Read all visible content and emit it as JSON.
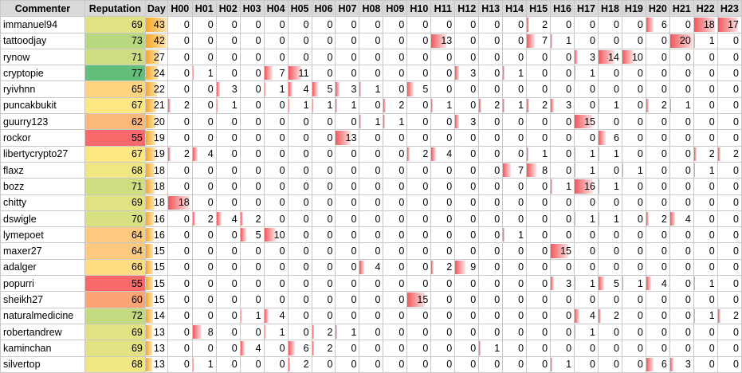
{
  "headers": [
    "Commenter",
    "Reputation",
    "Day",
    "H00",
    "H01",
    "H02",
    "H03",
    "H04",
    "H05",
    "H06",
    "H07",
    "H08",
    "H09",
    "H10",
    "H11",
    "H12",
    "H13",
    "H14",
    "H15",
    "H16",
    "H17",
    "H18",
    "H19",
    "H20",
    "H21",
    "H22",
    "H23"
  ],
  "rows": [
    {
      "name": "immanuel94",
      "rep": "69",
      "rep_color": "#e2e283",
      "day": "43",
      "hours": [
        "0",
        "0",
        "0",
        "0",
        "0",
        "0",
        "0",
        "0",
        "0",
        "0",
        "0",
        "0",
        "0",
        "0",
        "0",
        "2",
        "0",
        "0",
        "0",
        "0",
        "6",
        "0",
        "18",
        "17"
      ]
    },
    {
      "name": "tattoodjay",
      "rep": "73",
      "rep_color": "#b7d880",
      "day": "42",
      "hours": [
        "0",
        "0",
        "0",
        "0",
        "0",
        "0",
        "0",
        "0",
        "0",
        "0",
        "0",
        "13",
        "0",
        "0",
        "0",
        "7",
        "1",
        "0",
        "0",
        "0",
        "0",
        "20",
        "1",
        "0"
      ]
    },
    {
      "name": "rynow",
      "rep": "71",
      "rep_color": "#cedd82",
      "day": "27",
      "hours": [
        "0",
        "0",
        "0",
        "0",
        "0",
        "0",
        "0",
        "0",
        "0",
        "0",
        "0",
        "0",
        "0",
        "0",
        "0",
        "0",
        "0",
        "3",
        "14",
        "10",
        "0",
        "0",
        "0",
        "0"
      ]
    },
    {
      "name": "cryptopie",
      "rep": "77",
      "rep_color": "#63be7b",
      "day": "24",
      "hours": [
        "0",
        "1",
        "0",
        "0",
        "7",
        "11",
        "0",
        "0",
        "0",
        "0",
        "0",
        "0",
        "3",
        "0",
        "1",
        "0",
        "0",
        "1",
        "0",
        "0",
        "0",
        "0",
        "0",
        "0"
      ]
    },
    {
      "name": "ryivhnn",
      "rep": "65",
      "rep_color": "#fed481",
      "day": "22",
      "hours": [
        "0",
        "0",
        "3",
        "0",
        "1",
        "4",
        "5",
        "3",
        "1",
        "0",
        "5",
        "0",
        "0",
        "0",
        "0",
        "0",
        "0",
        "0",
        "0",
        "0",
        "0",
        "0",
        "0",
        "0"
      ]
    },
    {
      "name": "puncakbukit",
      "rep": "67",
      "rep_color": "#fde783",
      "day": "21",
      "hours": [
        "2",
        "0",
        "1",
        "0",
        "0",
        "1",
        "1",
        "1",
        "0",
        "2",
        "0",
        "1",
        "0",
        "2",
        "1",
        "2",
        "3",
        "0",
        "1",
        "0",
        "2",
        "1",
        "0",
        "0"
      ]
    },
    {
      "name": "guurry123",
      "rep": "62",
      "rep_color": "#fcb77a",
      "day": "20",
      "hours": [
        "0",
        "0",
        "0",
        "0",
        "0",
        "0",
        "0",
        "0",
        "1",
        "1",
        "0",
        "0",
        "3",
        "0",
        "0",
        "0",
        "0",
        "15",
        "0",
        "0",
        "0",
        "0",
        "0",
        "0"
      ]
    },
    {
      "name": "rockor",
      "rep": "55",
      "rep_color": "#f8696b",
      "day": "19",
      "hours": [
        "0",
        "0",
        "0",
        "0",
        "0",
        "0",
        "0",
        "13",
        "0",
        "0",
        "0",
        "0",
        "0",
        "0",
        "0",
        "0",
        "0",
        "0",
        "6",
        "0",
        "0",
        "0",
        "0",
        "0"
      ]
    },
    {
      "name": "libertycrypto27",
      "rep": "67",
      "rep_color": "#fde783",
      "day": "19",
      "hours": [
        "2",
        "4",
        "0",
        "0",
        "0",
        "0",
        "0",
        "0",
        "0",
        "0",
        "2",
        "4",
        "0",
        "0",
        "0",
        "1",
        "0",
        "1",
        "1",
        "0",
        "0",
        "0",
        "2",
        "2"
      ]
    },
    {
      "name": "flaxz",
      "rep": "68",
      "rep_color": "#f0e683",
      "day": "18",
      "hours": [
        "0",
        "0",
        "0",
        "0",
        "0",
        "0",
        "0",
        "0",
        "0",
        "0",
        "0",
        "0",
        "0",
        "0",
        "7",
        "8",
        "0",
        "1",
        "0",
        "1",
        "0",
        "0",
        "1",
        "0"
      ]
    },
    {
      "name": "bozz",
      "rep": "71",
      "rep_color": "#cedd82",
      "day": "18",
      "hours": [
        "0",
        "0",
        "0",
        "0",
        "0",
        "0",
        "0",
        "0",
        "0",
        "0",
        "0",
        "0",
        "0",
        "0",
        "0",
        "0",
        "1",
        "16",
        "1",
        "0",
        "0",
        "0",
        "0",
        "0"
      ]
    },
    {
      "name": "chitty",
      "rep": "69",
      "rep_color": "#e2e283",
      "day": "18",
      "hours": [
        "18",
        "0",
        "0",
        "0",
        "0",
        "0",
        "0",
        "0",
        "0",
        "0",
        "0",
        "0",
        "0",
        "0",
        "0",
        "0",
        "0",
        "0",
        "0",
        "0",
        "0",
        "0",
        "0",
        "0"
      ]
    },
    {
      "name": "dswigle",
      "rep": "70",
      "rep_color": "#d8e082",
      "day": "16",
      "hours": [
        "0",
        "2",
        "4",
        "2",
        "0",
        "0",
        "0",
        "0",
        "0",
        "0",
        "0",
        "0",
        "0",
        "0",
        "0",
        "0",
        "0",
        "1",
        "1",
        "0",
        "2",
        "4",
        "0",
        "0"
      ]
    },
    {
      "name": "lymepoet",
      "rep": "64",
      "rep_color": "#fdc97e",
      "day": "16",
      "hours": [
        "0",
        "0",
        "0",
        "5",
        "10",
        "0",
        "0",
        "0",
        "0",
        "0",
        "0",
        "0",
        "0",
        "0",
        "1",
        "0",
        "0",
        "0",
        "0",
        "0",
        "0",
        "0",
        "0",
        "0"
      ]
    },
    {
      "name": "maxer27",
      "rep": "64",
      "rep_color": "#fdc97e",
      "day": "15",
      "hours": [
        "0",
        "0",
        "0",
        "0",
        "0",
        "0",
        "0",
        "0",
        "0",
        "0",
        "0",
        "0",
        "0",
        "0",
        "0",
        "0",
        "15",
        "0",
        "0",
        "0",
        "0",
        "0",
        "0",
        "0"
      ]
    },
    {
      "name": "adalger",
      "rep": "66",
      "rep_color": "#fedd82",
      "day": "15",
      "hours": [
        "0",
        "0",
        "0",
        "0",
        "0",
        "0",
        "0",
        "0",
        "4",
        "0",
        "0",
        "2",
        "9",
        "0",
        "0",
        "0",
        "0",
        "0",
        "0",
        "0",
        "0",
        "0",
        "0",
        "0"
      ]
    },
    {
      "name": "popurri",
      "rep": "55",
      "rep_color": "#f8696b",
      "day": "15",
      "hours": [
        "0",
        "0",
        "0",
        "0",
        "0",
        "0",
        "0",
        "0",
        "0",
        "0",
        "0",
        "0",
        "0",
        "0",
        "0",
        "0",
        "3",
        "1",
        "5",
        "1",
        "4",
        "0",
        "1",
        "0"
      ]
    },
    {
      "name": "sheikh27",
      "rep": "60",
      "rep_color": "#fba576",
      "day": "15",
      "hours": [
        "0",
        "0",
        "0",
        "0",
        "0",
        "0",
        "0",
        "0",
        "0",
        "0",
        "15",
        "0",
        "0",
        "0",
        "0",
        "0",
        "0",
        "0",
        "0",
        "0",
        "0",
        "0",
        "0",
        "0"
      ]
    },
    {
      "name": "naturalmedicine",
      "rep": "72",
      "rep_color": "#c3da81",
      "day": "14",
      "hours": [
        "0",
        "0",
        "0",
        "1",
        "4",
        "0",
        "0",
        "0",
        "0",
        "0",
        "0",
        "0",
        "0",
        "0",
        "0",
        "0",
        "0",
        "4",
        "2",
        "0",
        "0",
        "0",
        "1",
        "2"
      ]
    },
    {
      "name": "robertandrew",
      "rep": "69",
      "rep_color": "#e2e283",
      "day": "13",
      "hours": [
        "0",
        "8",
        "0",
        "0",
        "1",
        "0",
        "2",
        "1",
        "0",
        "0",
        "0",
        "0",
        "0",
        "0",
        "0",
        "0",
        "0",
        "1",
        "0",
        "0",
        "0",
        "0",
        "0",
        "0"
      ]
    },
    {
      "name": "kaminchan",
      "rep": "69",
      "rep_color": "#e2e283",
      "day": "13",
      "hours": [
        "0",
        "0",
        "0",
        "4",
        "0",
        "6",
        "2",
        "0",
        "0",
        "0",
        "0",
        "0",
        "0",
        "1",
        "0",
        "0",
        "0",
        "0",
        "0",
        "0",
        "0",
        "0",
        "0",
        "0"
      ]
    },
    {
      "name": "silvertop",
      "rep": "68",
      "rep_color": "#f0e683",
      "day": "13",
      "hours": [
        "0",
        "1",
        "0",
        "0",
        "0",
        "2",
        "0",
        "0",
        "0",
        "0",
        "0",
        "0",
        "0",
        "0",
        "0",
        "0",
        "1",
        "0",
        "0",
        "0",
        "6",
        "3",
        "0",
        "0"
      ]
    }
  ],
  "scale": {
    "day_max": 43,
    "hour_max": 20
  }
}
